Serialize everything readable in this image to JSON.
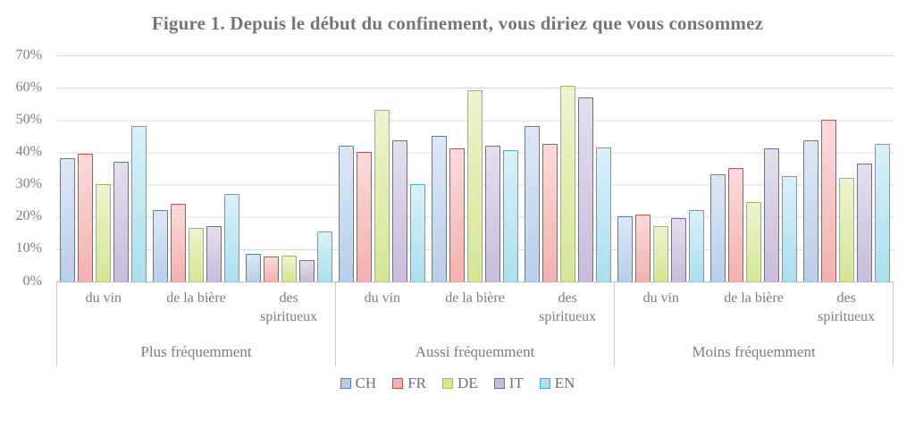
{
  "chart_data": {
    "type": "bar",
    "title": "Figure 1. Depuis le début du confinement, vous diriez que vous consommez",
    "ylim": [
      0,
      70
    ],
    "ytick_step": 10,
    "ytick_labels": [
      "0%",
      "10%",
      "20%",
      "30%",
      "40%",
      "50%",
      "60%",
      "70%"
    ],
    "grid": true,
    "legend_position": "bottom",
    "groups": [
      "Plus fréquemment",
      "Aussi fréquemment",
      "Moins fréquemment"
    ],
    "categories": [
      "du vin",
      "de la bière",
      "des spiritueux"
    ],
    "series": [
      {
        "name": "CH",
        "border": "#4f81bd",
        "fill": "#b9cde9",
        "fill_light": "#dde8f6",
        "values": [
          [
            38,
            22,
            8.5
          ],
          [
            42,
            45,
            48
          ],
          [
            20,
            33,
            43.5
          ]
        ]
      },
      {
        "name": "FR",
        "border": "#c0504d",
        "fill": "#f3b1af",
        "fill_light": "#fadbda",
        "values": [
          [
            39.5,
            24,
            7.5
          ],
          [
            40,
            41,
            42.5
          ],
          [
            20.5,
            35,
            50
          ]
        ]
      },
      {
        "name": "DE",
        "border": "#9bbb59",
        "fill": "#d5e694",
        "fill_light": "#ecf4cf",
        "values": [
          [
            30,
            16.5,
            8
          ],
          [
            53,
            59,
            60.5
          ],
          [
            17,
            24.5,
            32
          ]
        ]
      },
      {
        "name": "IT",
        "border": "#8064a2",
        "fill": "#c8bcdb",
        "fill_light": "#e4deee",
        "values": [
          [
            37,
            17,
            6.5
          ],
          [
            43.5,
            42,
            57
          ],
          [
            19.5,
            41,
            36.5
          ]
        ]
      },
      {
        "name": "EN",
        "border": "#4bacc6",
        "fill": "#abdfee",
        "fill_light": "#d9f1f8",
        "values": [
          [
            48,
            27,
            15.5
          ],
          [
            30,
            40.5,
            41.5
          ],
          [
            22,
            32.5,
            42.5
          ]
        ]
      }
    ]
  }
}
